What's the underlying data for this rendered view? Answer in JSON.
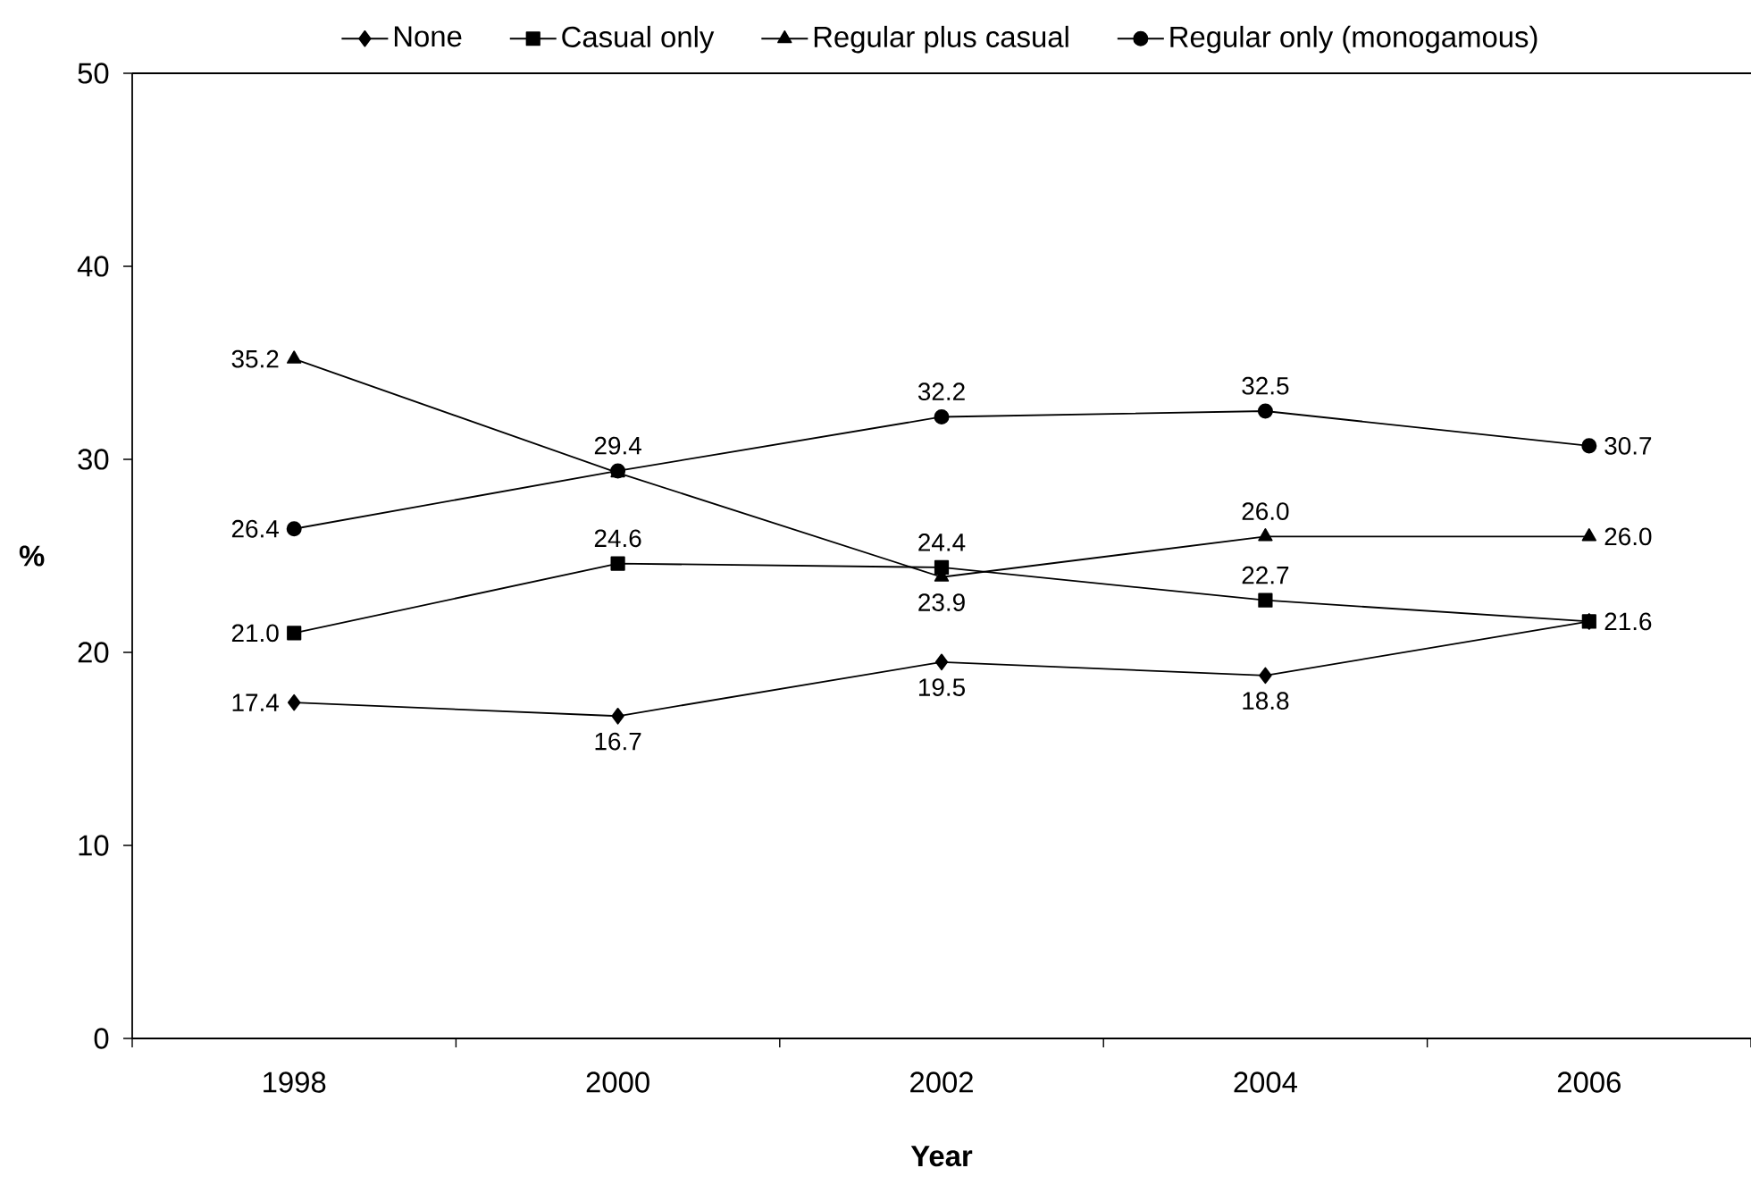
{
  "chart_data": {
    "type": "line",
    "xlabel": "Year",
    "ylabel": "%",
    "categories": [
      "1998",
      "2000",
      "2002",
      "2004",
      "2006"
    ],
    "ylim": [
      0,
      50
    ],
    "yticks": [
      0,
      10,
      20,
      30,
      40,
      50
    ],
    "legend": "top",
    "line_style": "solid",
    "series": [
      {
        "name": "None",
        "color": "#000000",
        "marker": "diamond",
        "values": [
          17.4,
          16.7,
          19.5,
          18.8,
          21.6
        ],
        "value_labels": [
          "17.4",
          "16.7",
          "19.5",
          "18.8",
          null
        ]
      },
      {
        "name": "Casual only",
        "color": "#000000",
        "marker": "square",
        "values": [
          21.0,
          24.6,
          24.4,
          22.7,
          21.6
        ],
        "value_labels": [
          "21.0",
          "24.6",
          "24.4",
          "22.7",
          "21.6"
        ]
      },
      {
        "name": "Regular plus casual",
        "color": "#000000",
        "marker": "triangle",
        "values": [
          35.2,
          29.3,
          23.9,
          26.0,
          26.0
        ],
        "value_labels": [
          "35.2",
          null,
          "23.9",
          "26.0",
          "26.0"
        ]
      },
      {
        "name": "Regular only (monogamous)",
        "color": "#000000",
        "marker": "circle",
        "values": [
          26.4,
          29.4,
          32.2,
          32.5,
          30.7
        ],
        "value_labels": [
          "26.4",
          "29.4",
          "32.2",
          "32.5",
          "30.7"
        ]
      }
    ]
  }
}
